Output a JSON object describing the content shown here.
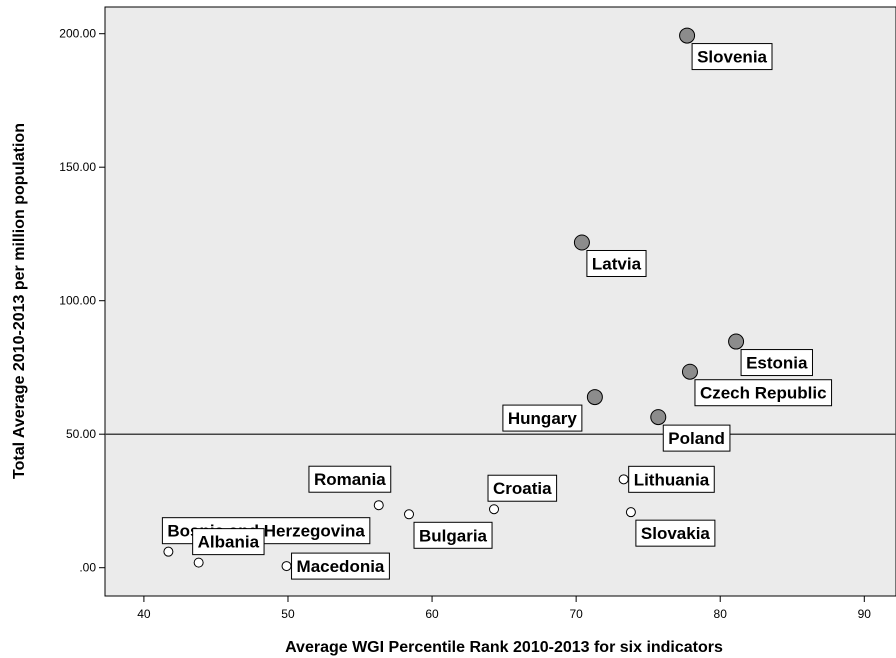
{
  "chart_data": {
    "type": "scatter",
    "title": "",
    "xlabel": "Average WGI Percentile Rank 2010-2013 for six indicators",
    "ylabel": "Total Average 2010-2013 per million population",
    "xlim": [
      37.3,
      92.2
    ],
    "ylim": [
      -10.6,
      210
    ],
    "x_ticks": [
      {
        "value": 40,
        "label": "40"
      },
      {
        "value": 50,
        "label": "50"
      },
      {
        "value": 60,
        "label": "60"
      },
      {
        "value": 70,
        "label": "70"
      },
      {
        "value": 80,
        "label": "80"
      },
      {
        "value": 90,
        "label": "90"
      }
    ],
    "y_ticks": [
      {
        "value": 0,
        "label": ".00"
      },
      {
        "value": 50,
        "label": "50.00"
      },
      {
        "value": 100,
        "label": "100.00"
      },
      {
        "value": 150,
        "label": "150.00"
      },
      {
        "value": 200,
        "label": "200.00"
      }
    ],
    "reference_line_y": 50,
    "grid": false,
    "plot_background": "#ebebeb",
    "points": [
      {
        "label": "Slovenia",
        "x": 77.7,
        "y": 199.3,
        "group": "high",
        "label_pos": "below-right"
      },
      {
        "label": "Latvia",
        "x": 70.4,
        "y": 121.8,
        "group": "high",
        "label_pos": "below-right"
      },
      {
        "label": "Estonia",
        "x": 81.1,
        "y": 84.7,
        "group": "high",
        "label_pos": "below-right"
      },
      {
        "label": "Czech Republic",
        "x": 77.9,
        "y": 73.4,
        "group": "high",
        "label_pos": "below-right"
      },
      {
        "label": "Hungary",
        "x": 71.3,
        "y": 63.9,
        "group": "high",
        "label_pos": "below-left"
      },
      {
        "label": "Poland",
        "x": 75.7,
        "y": 56.4,
        "group": "high",
        "label_pos": "below-right"
      },
      {
        "label": "Lithuania",
        "x": 73.3,
        "y": 33.1,
        "group": "low",
        "label_pos": "right"
      },
      {
        "label": "Slovakia",
        "x": 73.8,
        "y": 20.8,
        "group": "low",
        "label_pos": "below-right"
      },
      {
        "label": "Croatia",
        "x": 64.3,
        "y": 21.9,
        "group": "low",
        "label_pos": "above-right"
      },
      {
        "label": "Romania",
        "x": 56.3,
        "y": 23.4,
        "group": "low",
        "label_pos": "above-left"
      },
      {
        "label": "Bulgaria",
        "x": 58.4,
        "y": 20.0,
        "group": "low",
        "label_pos": "below-right"
      },
      {
        "label": "Bosnia and Herzegovina",
        "x": 41.7,
        "y": 6.0,
        "group": "low",
        "label_pos": "above-right"
      },
      {
        "label": "Albania",
        "x": 43.8,
        "y": 1.9,
        "group": "low",
        "label_pos": "above-right"
      },
      {
        "label": "Macedonia",
        "x": 49.9,
        "y": 0.6,
        "group": "low",
        "label_pos": "right"
      }
    ],
    "colors": {
      "high_fill": "#8c8c8c",
      "low_fill": "#ffffff",
      "marker_stroke": "#000000",
      "reference_line": "#444444"
    }
  }
}
